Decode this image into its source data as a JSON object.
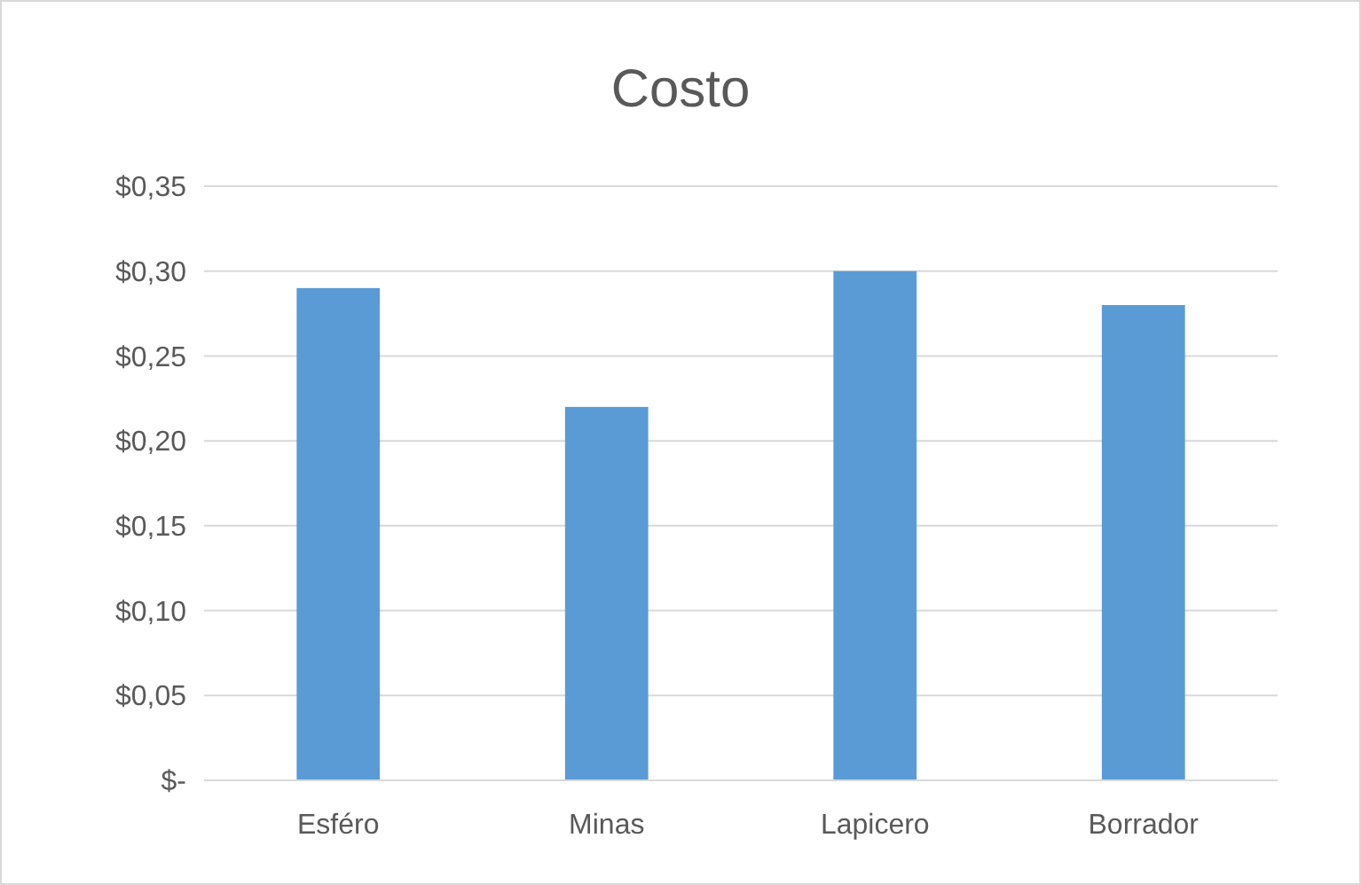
{
  "chart_data": {
    "type": "bar",
    "title": "Costo",
    "categories": [
      "Esféro",
      "Minas",
      "Lapicero",
      "Borrador"
    ],
    "values": [
      0.29,
      0.22,
      0.3,
      0.28
    ],
    "color": "#5b9bd5",
    "ylim": [
      0,
      0.35
    ],
    "yticks": [
      {
        "value": 0,
        "label": "$-"
      },
      {
        "value": 0.05,
        "label": "$0,05"
      },
      {
        "value": 0.1,
        "label": "$0,10"
      },
      {
        "value": 0.15,
        "label": "$0,15"
      },
      {
        "value": 0.2,
        "label": "$0,20"
      },
      {
        "value": 0.25,
        "label": "$0,25"
      },
      {
        "value": 0.3,
        "label": "$0,30"
      },
      {
        "value": 0.35,
        "label": "$0,35"
      }
    ],
    "grid": "y"
  }
}
